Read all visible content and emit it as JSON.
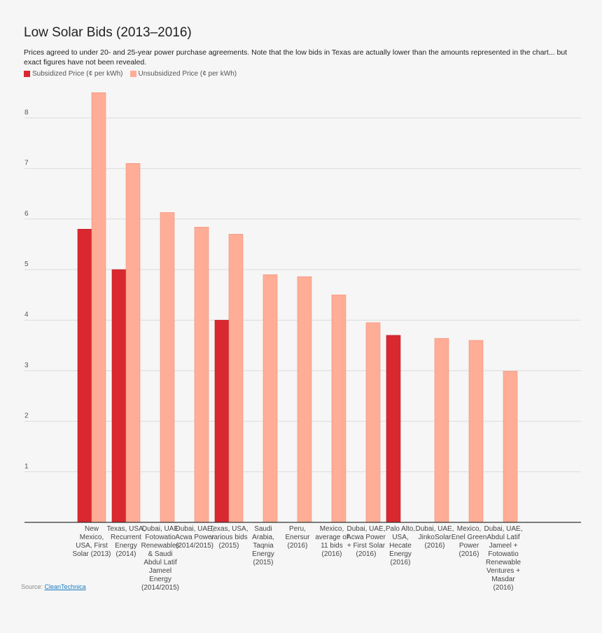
{
  "chart_data": {
    "type": "bar",
    "title": "Low Solar Bids (2013–2016)",
    "subtitle": "Prices agreed to under 20- and 25-year power purchase agreements. Note that the low bids in Texas are actually lower than the amounts represented in the chart... but exact figures have not been revealed.",
    "xlabel": "",
    "ylabel": "",
    "ylim": [
      0,
      8.5
    ],
    "yticks": [
      1,
      2,
      3,
      4,
      5,
      6,
      7,
      8
    ],
    "grid": true,
    "legend_position": "top-left",
    "categories": [
      "New Mexico, USA, First Solar (2013)",
      "Texas, USA, Recurrent Energy (2014)",
      "Dubai, UAE Fotowatio Renewables & Saudi Abdul Latif Jameel Energy (2014/2015)",
      "Dubai, UAE, Acwa Power (2014/2015)",
      "Texas, USA, various bids (2015)",
      "Saudi Arabia, Taqnia Energy (2015)",
      "Peru, Enersur (2016)",
      "Mexico, average of 11 bids (2016)",
      "Dubai, UAE, Acwa Power + First Solar (2016)",
      "Palo Alto, USA, Hecate Energy (2016)",
      "Dubai, UAE, JinkoSolar (2016)",
      "Mexico, Enel Green Power (2016)",
      "Dubai, UAE, Abdul Latif Jameel + Fotowatio Renewable Ventures + Masdar (2016)"
    ],
    "series": [
      {
        "name": "Subsidized Price (¢ per kWh)",
        "color": "#d9282f",
        "values": [
          5.8,
          5.0,
          null,
          null,
          4.0,
          null,
          null,
          null,
          null,
          3.7,
          null,
          null,
          null
        ]
      },
      {
        "name": "Unsubsidized Price (¢ per kWh)",
        "color": "#ffad96",
        "values": [
          8.5,
          7.1,
          6.13,
          5.84,
          5.7,
          4.9,
          4.86,
          4.5,
          3.95,
          null,
          3.64,
          3.6,
          2.99
        ]
      }
    ]
  },
  "source": {
    "label": "Source:",
    "link": "CleanTechnica"
  }
}
